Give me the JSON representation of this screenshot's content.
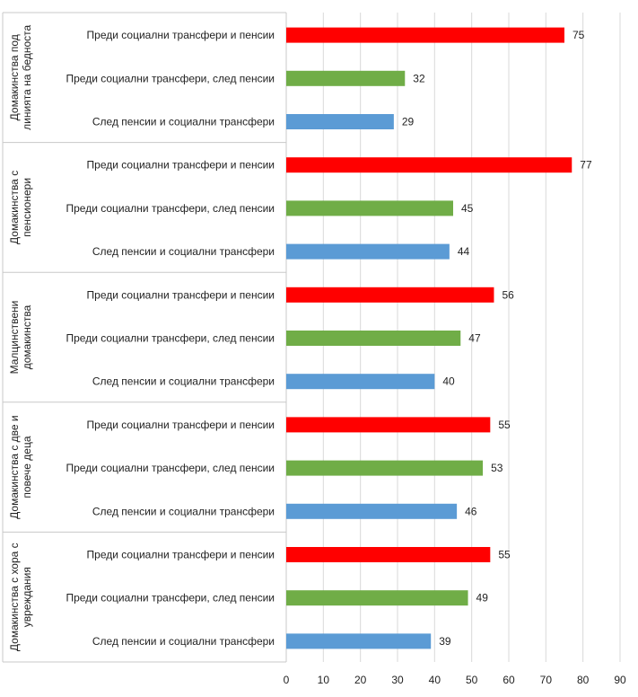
{
  "chart_data": {
    "type": "bar",
    "orientation": "horizontal",
    "xlim": [
      0,
      90
    ],
    "x_ticks": [
      0,
      10,
      20,
      30,
      40,
      50,
      60,
      70,
      80,
      90
    ],
    "grid": true,
    "legend": "none",
    "series_colors": {
      "Преди социални трансфери и пенсии": "#ff0000",
      "Преди социални трансфери, след пенсии": "#70ad47",
      "След пенсии и социални трансфери": "#5b9bd5"
    },
    "groups": [
      {
        "label": "Домакинства под линията на бедноста",
        "label_lines": [
          "Домакинства под",
          "линията на бедноста"
        ],
        "bars": [
          {
            "label": "Преди социални трансфери и пенсии",
            "value": 75
          },
          {
            "label": "Преди социални трансфери, след пенсии",
            "value": 32
          },
          {
            "label": "След пенсии и социални трансфери",
            "value": 29
          }
        ]
      },
      {
        "label": "Домакинства с пенсионери",
        "label_lines": [
          "Домакинства с",
          "пенсионери"
        ],
        "bars": [
          {
            "label": "Преди социални трансфери и пенсии",
            "value": 77
          },
          {
            "label": "Преди социални трансфери, след пенсии",
            "value": 45
          },
          {
            "label": "След пенсии и социални трансфери",
            "value": 44
          }
        ]
      },
      {
        "label": "Малцинствени домакинства",
        "label_lines": [
          "Малцинствени",
          "домакинства"
        ],
        "bars": [
          {
            "label": "Преди социални трансфери и пенсии",
            "value": 56
          },
          {
            "label": "Преди социални трансфери, след пенсии",
            "value": 47
          },
          {
            "label": "След пенсии и социални трансфери",
            "value": 40
          }
        ]
      },
      {
        "label": "Домакинства с две и повече деца",
        "label_lines": [
          "Домакинства с две и",
          "повече деца"
        ],
        "bars": [
          {
            "label": "Преди социални трансфери и пенсии",
            "value": 55
          },
          {
            "label": "Преди социални трансфери, след пенсии",
            "value": 53
          },
          {
            "label": "След пенсии и социални трансфери",
            "value": 46
          }
        ]
      },
      {
        "label": "Домакинства с хора с увреждания",
        "label_lines": [
          "Домакинства с хора с",
          "увреждания"
        ],
        "bars": [
          {
            "label": "Преди социални трансфери и пенсии",
            "value": 55
          },
          {
            "label": "Преди социални трансфери, след пенсии",
            "value": 49
          },
          {
            "label": "След пенсии и социални трансфери",
            "value": 39
          }
        ]
      }
    ]
  }
}
